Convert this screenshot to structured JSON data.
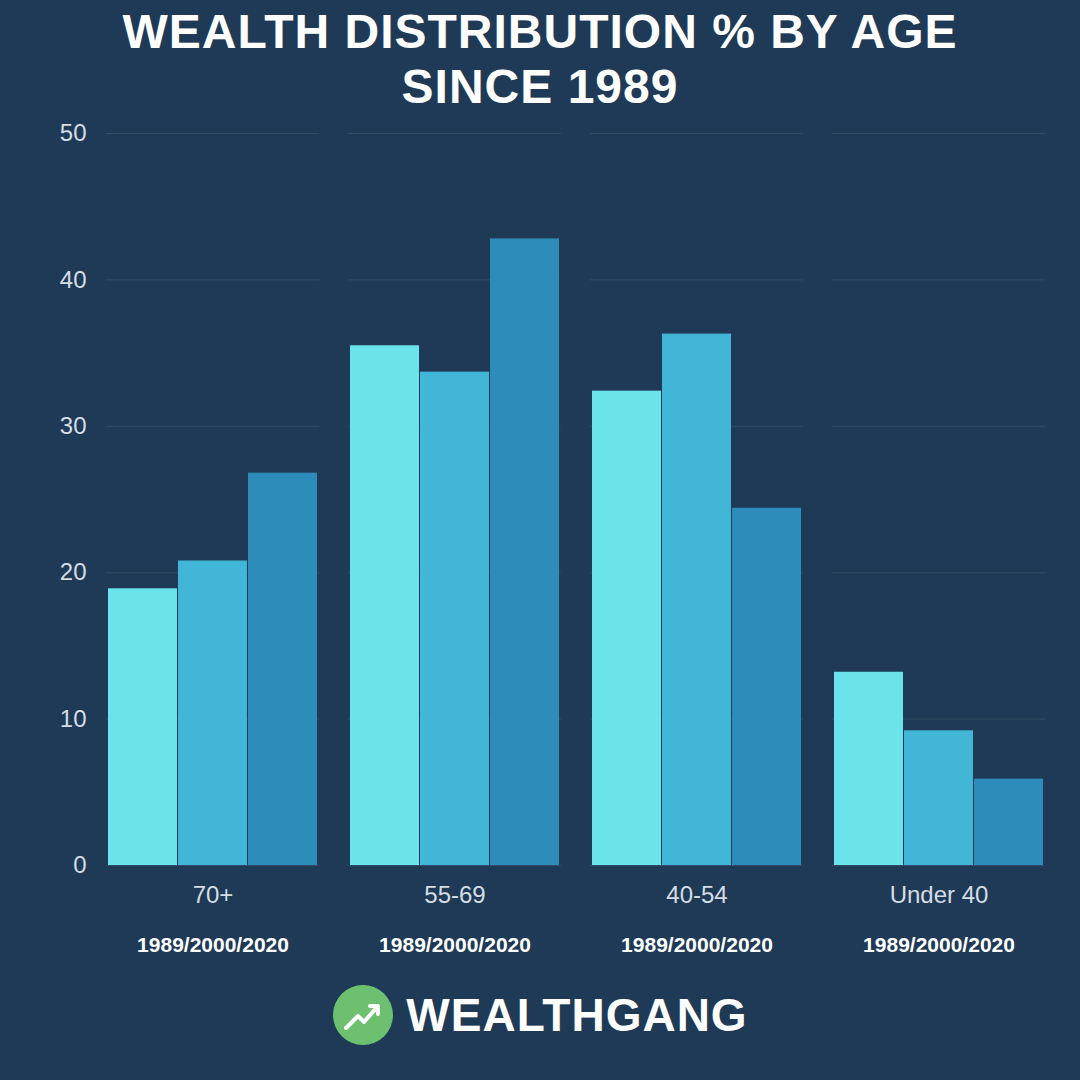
{
  "chart_data": {
    "type": "bar",
    "title": "WEALTH DISTRIBUTION % BY AGE SINCE 1989",
    "categories": [
      "70+",
      "55-69",
      "40-54",
      "Under 40"
    ],
    "category_sublabels": [
      "1989/2000/2020",
      "1989/2000/2020",
      "1989/2000/2020",
      "1989/2000/2020"
    ],
    "series": [
      {
        "name": "1989",
        "color": "#6ae4ea",
        "values": [
          18.9,
          35.5,
          32.4,
          13.2
        ]
      },
      {
        "name": "2000",
        "color": "#42b6d6",
        "values": [
          20.8,
          33.7,
          36.3,
          9.2
        ]
      },
      {
        "name": "2020",
        "color": "#2e8cbb",
        "values": [
          26.8,
          42.8,
          24.4,
          5.9
        ]
      }
    ],
    "ylim": [
      0,
      50
    ],
    "yticks": [
      0,
      10,
      20,
      30,
      40,
      50
    ],
    "grid": true,
    "caption": "WEALTHGANG"
  }
}
